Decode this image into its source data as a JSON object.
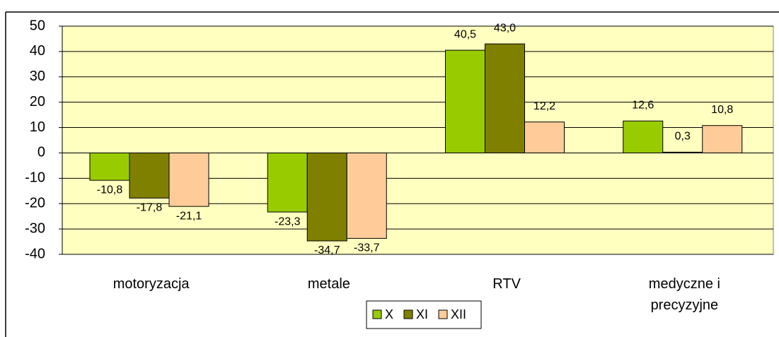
{
  "chart_data": {
    "type": "bar",
    "categories": [
      "motoryzacja",
      "metale",
      "RTV",
      "medyczne i precyzyjne"
    ],
    "series": [
      {
        "name": "X",
        "color": "#99cc00",
        "values": [
          -10.8,
          -23.3,
          40.5,
          12.6
        ],
        "value_labels": [
          "-10,8",
          "-23,3",
          "40,5",
          "12,6"
        ]
      },
      {
        "name": "XI",
        "color": "#808000",
        "values": [
          -17.8,
          -34.7,
          43.0,
          0.3
        ],
        "value_labels": [
          "-17,8",
          "-34,7",
          "43,0",
          "0,3"
        ]
      },
      {
        "name": "XII",
        "color": "#ffcc99",
        "values": [
          -21.1,
          -33.7,
          12.2,
          10.8
        ],
        "value_labels": [
          "-21,1",
          "-33,7",
          "12,2",
          "10,8"
        ]
      }
    ],
    "ylim": [
      -40,
      50
    ],
    "yticks": [
      -40,
      -30,
      -20,
      -10,
      0,
      10,
      20,
      30,
      40,
      50
    ],
    "grid": true,
    "plot_background": "#ffffc0",
    "legend": "bottom"
  }
}
